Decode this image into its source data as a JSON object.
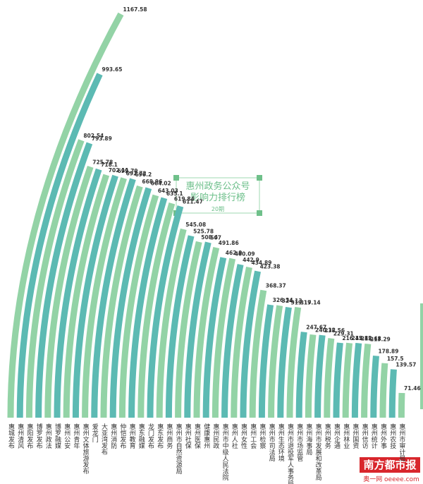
{
  "chart_data": {
    "type": "curved-bar",
    "title": "惠州政务公众号\n影响力排行榜",
    "subtitle": "20期",
    "source": "南方都市报",
    "source_site": "奥一网 oeeee.com",
    "colors": [
      "#93d3a6",
      "#5cbab3"
    ],
    "categories": [
      "惠城发布",
      "惠州清风",
      "惠阳发布",
      "博罗发布",
      "惠州政法",
      "博罗融媒",
      "惠州公安",
      "惠州青年",
      "惠州文体旅游发布",
      "爱龙门",
      "大亚湾发布",
      "惠州消防",
      "仲恺发布",
      "惠州教育",
      "惠东融媒",
      "龙门发布",
      "惠东发布",
      "惠州商务",
      "惠州市自然资源局",
      "惠州社保",
      "惠州医保",
      "健康惠州",
      "惠州民政",
      "惠州市中级人民法院",
      "惠州人社",
      "惠州女性",
      "惠州工会",
      "惠州检察",
      "惠州市司法局",
      "惠州生态环境",
      "惠州市退役军人事务局",
      "惠州市场监管",
      "惠州海事局",
      "惠州市发展和改革局",
      "惠州税务",
      "惠州企通",
      "惠州林业",
      "惠州国资",
      "惠州信访",
      "惠州统计",
      "惠州外事",
      "惠州农技",
      "惠州市审计局"
    ],
    "values": [
      1167.58,
      993.65,
      802.54,
      793.89,
      725.78,
      718.1,
      702.11,
      699.79,
      692.72,
      690.2,
      668.96,
      664.02,
      643.03,
      635.1,
      619.84,
      611.47,
      545.08,
      525.78,
      508.4,
      507,
      491.86,
      462.9,
      460.09,
      442.9,
      434.89,
      423.38,
      368.37,
      326.34,
      324.13,
      319.17,
      319.14,
      247.67,
      240.12,
      238.56,
      229.31,
      216.42,
      215.82,
      215.48,
      213.29,
      178.89,
      157.5,
      139.57,
      71.46
    ]
  }
}
